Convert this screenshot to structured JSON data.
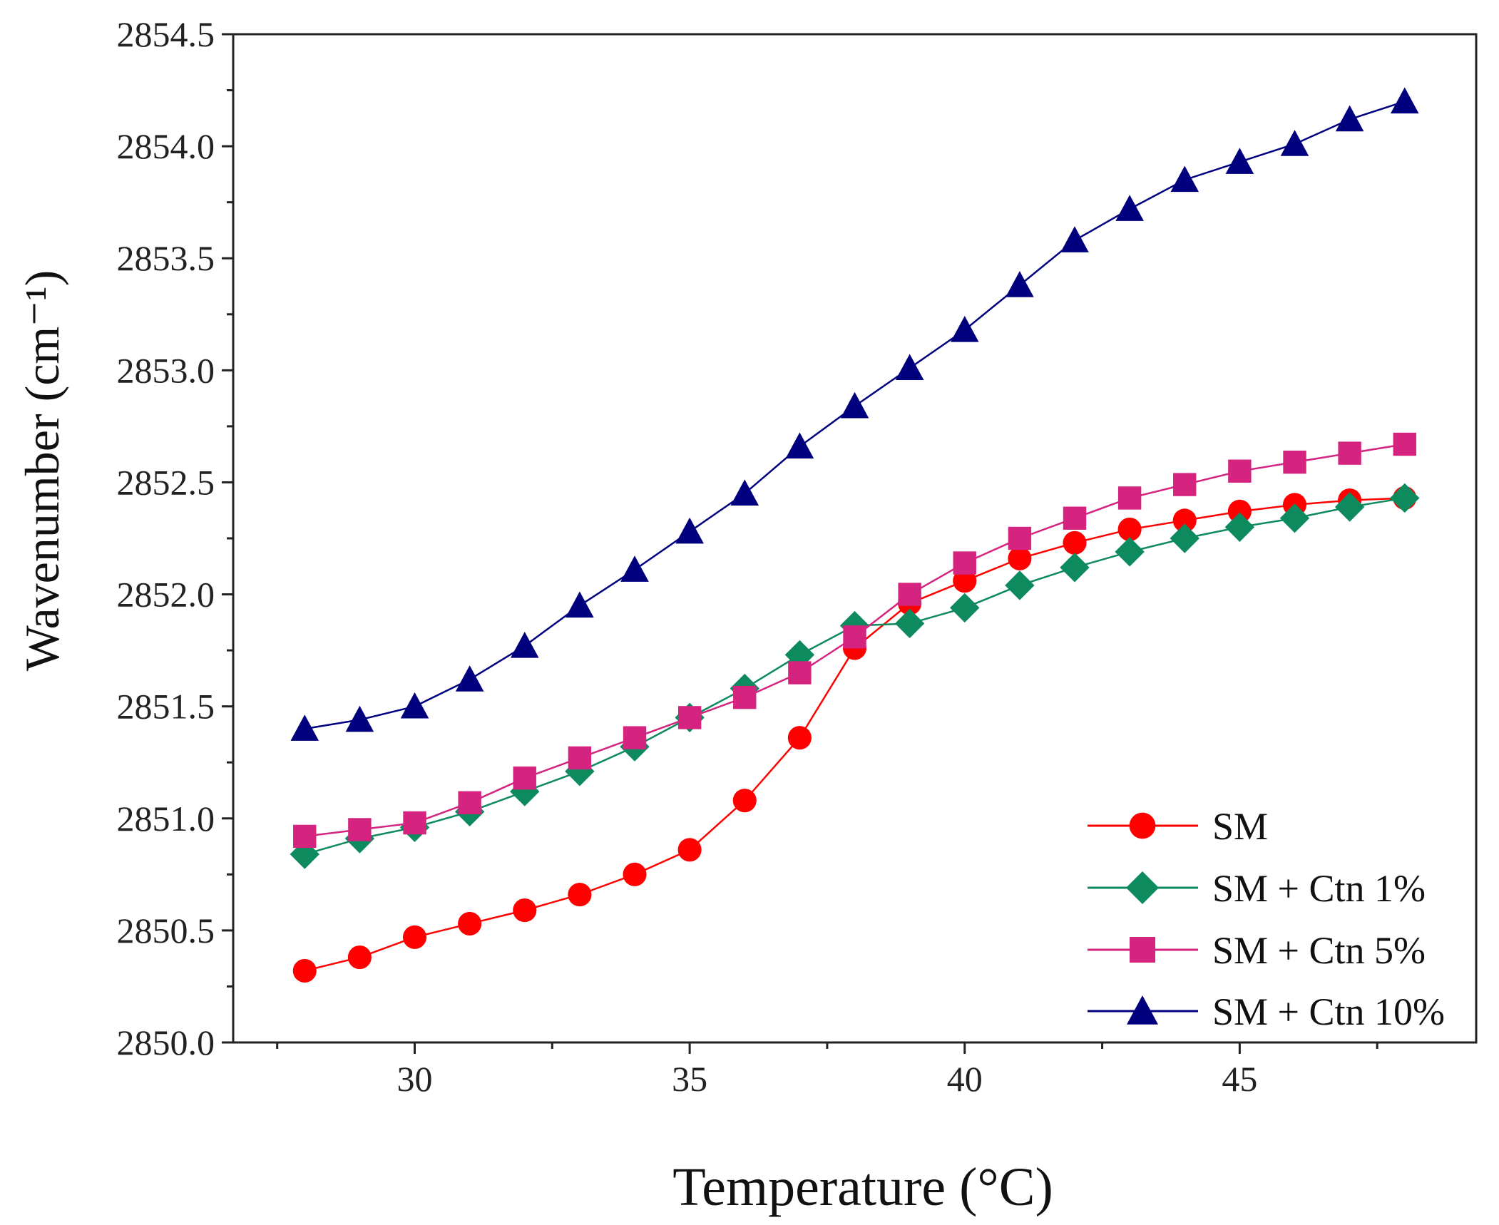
{
  "chart_data": {
    "type": "line",
    "title": "",
    "xlabel": "Temperature (°C)",
    "ylabel": "Wavenumber (cm⁻¹)",
    "xlim": [
      26.7,
      49.3
    ],
    "ylim": [
      2850.0,
      2854.5
    ],
    "xticks": [
      30,
      35,
      40,
      45
    ],
    "xtick_labels": [
      "30",
      "35",
      "40",
      "45"
    ],
    "yticks": [
      2850.0,
      2850.5,
      2851.0,
      2851.5,
      2852.0,
      2852.5,
      2853.0,
      2853.5,
      2854.0,
      2854.5
    ],
    "ytick_labels": [
      "2850.0",
      "2850.5",
      "2851.0",
      "2851.5",
      "2852.0",
      "2852.5",
      "2853.0",
      "2853.5",
      "2854.0",
      "2854.5"
    ],
    "grid": false,
    "legend_position": "bottom-right",
    "x": [
      28,
      29,
      30,
      31,
      32,
      33,
      34,
      35,
      36,
      37,
      38,
      39,
      40,
      41,
      42,
      43,
      44,
      45,
      46,
      47,
      48
    ],
    "series": [
      {
        "name": "SM",
        "color": "#ff0000",
        "marker": "circle",
        "values": [
          2850.32,
          2850.38,
          2850.47,
          2850.53,
          2850.59,
          2850.66,
          2850.75,
          2850.86,
          2851.08,
          2851.36,
          2851.76,
          2851.96,
          2852.06,
          2852.16,
          2852.23,
          2852.29,
          2852.33,
          2852.37,
          2852.4,
          2852.42,
          2852.43
        ]
      },
      {
        "name": "SM + Ctn 1%",
        "color": "#0e8a5f",
        "marker": "diamond",
        "values": [
          2850.84,
          2850.91,
          2850.96,
          2851.03,
          2851.12,
          2851.21,
          2851.32,
          2851.45,
          2851.58,
          2851.73,
          2851.86,
          2851.87,
          2851.94,
          2852.04,
          2852.12,
          2852.19,
          2852.25,
          2852.3,
          2852.34,
          2852.39,
          2852.43
        ]
      },
      {
        "name": "SM + Ctn 5%",
        "color": "#d4247f",
        "marker": "square",
        "values": [
          2850.92,
          2850.95,
          2850.98,
          2851.07,
          2851.18,
          2851.27,
          2851.36,
          2851.45,
          2851.54,
          2851.65,
          2851.81,
          2852.0,
          2852.14,
          2852.25,
          2852.34,
          2852.43,
          2852.49,
          2852.55,
          2852.59,
          2852.63,
          2852.67
        ]
      },
      {
        "name": "SM + Ctn 10%",
        "color": "#00007f",
        "marker": "triangle",
        "values": [
          2851.4,
          2851.44,
          2851.5,
          2851.62,
          2851.77,
          2851.95,
          2852.11,
          2852.28,
          2852.45,
          2852.66,
          2852.84,
          2853.01,
          2853.18,
          2853.38,
          2853.58,
          2853.72,
          2853.85,
          2853.93,
          2854.01,
          2854.12,
          2854.2
        ]
      }
    ]
  }
}
